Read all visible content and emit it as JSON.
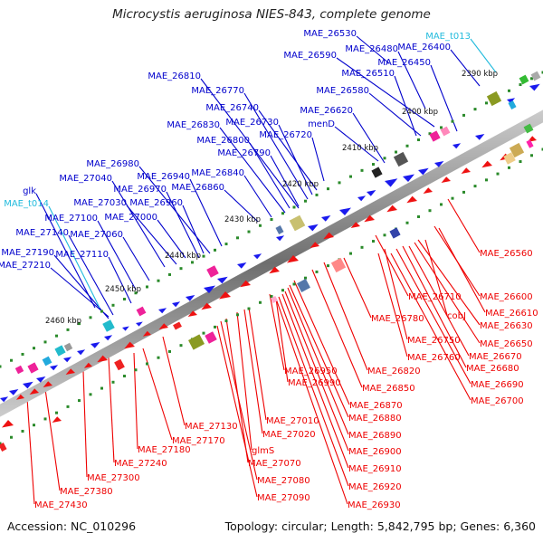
{
  "title": "Microcystis aeruginosa NIES-843, complete genome",
  "accession": "Accession: NC_010296",
  "topology": "Topology: circular; Length: 5,842,795 bp; Genes: 6,360",
  "colors": {
    "plus_label": "#0000cc",
    "minus_label": "#ee0000",
    "trna_label": "#22bbdd",
    "axis": "#777777",
    "tick": "#228822"
  },
  "ticks": [
    "2390 kbp",
    "2400 kbp",
    "2410 kbp",
    "2420 kbp",
    "2430 kbp",
    "2440 kbp",
    "2450 kbp",
    "2460 kbp"
  ],
  "plus_labels": [
    "MAE_26530",
    "MAE_26480",
    "MAE_26590",
    "MAE_26400",
    "MAE_26450",
    "MAE_26510",
    "MAE_26810",
    "MAE_26580",
    "MAE_26770",
    "MAE_26740",
    "MAE_26620",
    "MAE_26830",
    "MAE_26730",
    "menD",
    "MAE_26720",
    "MAE_26800",
    "MAE_26790",
    "MAE_26980",
    "MAE_26840",
    "MAE_27040",
    "MAE_26940",
    "MAE_26970",
    "MAE_26860",
    "glk",
    "MAE_27030",
    "MAE_26960",
    "MAE_27000",
    "MAE_27100",
    "MAE_27140",
    "MAE_27060",
    "MAE_27190",
    "MAE_27110",
    "MAE_27210"
  ],
  "trna_labels": [
    "MAE_t013",
    "MAE_t014"
  ],
  "minus_labels": [
    "MAE_26560",
    "MAE_26710",
    "MAE_26600",
    "MAE_26610",
    "cobJ",
    "MAE_26630",
    "MAE_26780",
    "MAE_26650",
    "MAE_26750",
    "MAE_26670",
    "MAE_26760",
    "MAE_26680",
    "MAE_26690",
    "MAE_26700",
    "MAE_26820",
    "MAE_26950",
    "MAE_26850",
    "MAE_26990",
    "MAE_26870",
    "MAE_26880",
    "MAE_27010",
    "MAE_27020",
    "MAE_26890",
    "MAE_26900",
    "MAE_26910",
    "MAE_27130",
    "MAE_27170",
    "glmS",
    "MAE_26920",
    "MAE_27070",
    "MAE_26930",
    "MAE_27180",
    "MAE_27080",
    "MAE_27240",
    "MAE_27090",
    "MAE_27300",
    "MAE_27380",
    "MAE_27430"
  ]
}
